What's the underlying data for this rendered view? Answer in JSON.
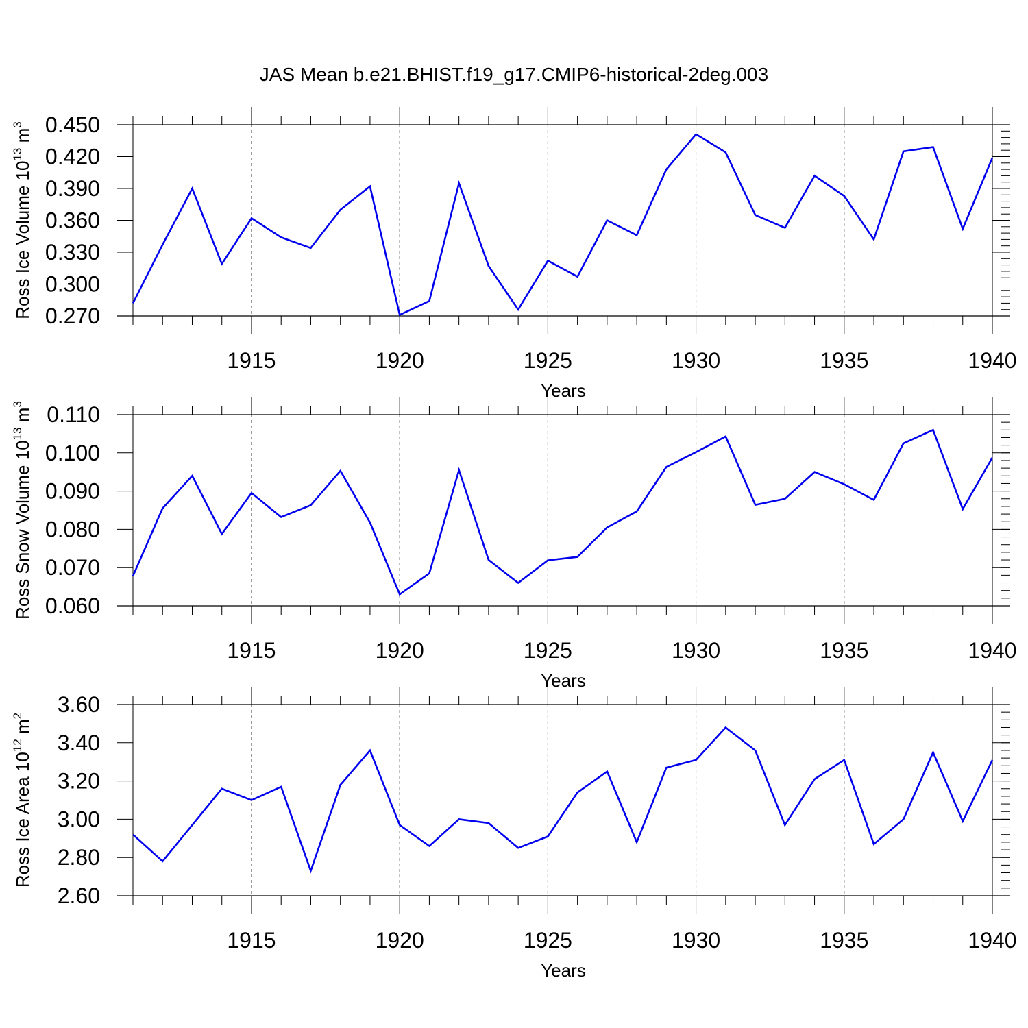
{
  "figure": {
    "title": "JAS Mean b.e21.BHIST.f19_g17.CMIP6-historical-2deg.003",
    "line_color": "#0000ee"
  },
  "chart_data": [
    {
      "type": "line",
      "ylabel": {
        "text": "Ross Ice Volume 10",
        "sup1": "13",
        "mid": " m",
        "sup2": "3"
      },
      "xlabel": "Years",
      "xlim": [
        1911,
        1940
      ],
      "ylim": [
        0.27,
        0.45
      ],
      "yticks": [
        0.27,
        0.3,
        0.33,
        0.36,
        0.39,
        0.42,
        0.45
      ],
      "ytick_labels": [
        "0.270",
        "0.300",
        "0.330",
        "0.360",
        "0.390",
        "0.420",
        "0.450"
      ],
      "yminor_step": 0.006,
      "xticks": [
        1915,
        1920,
        1925,
        1930,
        1935,
        1940
      ],
      "xtick_labels": [
        "1915",
        "1920",
        "1925",
        "1930",
        "1935",
        "1940"
      ],
      "grid": "vertical-dashed",
      "series": [
        {
          "x": [
            1911,
            1912,
            1913,
            1914,
            1915,
            1916,
            1917,
            1918,
            1919,
            1920,
            1921,
            1922,
            1923,
            1924,
            1925,
            1926,
            1927,
            1928,
            1929,
            1930,
            1931,
            1932,
            1933,
            1934,
            1935,
            1936,
            1937,
            1938,
            1939,
            1940
          ],
          "values": [
            0.282,
            0.337,
            0.39,
            0.319,
            0.362,
            0.344,
            0.334,
            0.37,
            0.392,
            0.271,
            0.284,
            0.395,
            0.317,
            0.276,
            0.322,
            0.307,
            0.36,
            0.346,
            0.408,
            0.441,
            0.424,
            0.365,
            0.353,
            0.402,
            0.383,
            0.342,
            0.425,
            0.429,
            0.352,
            0.419
          ]
        }
      ]
    },
    {
      "type": "line",
      "ylabel": {
        "text": "Ross Snow Volume 10",
        "sup1": "13",
        "mid": " m",
        "sup2": "3"
      },
      "xlabel": "Years",
      "xlim": [
        1911,
        1940
      ],
      "ylim": [
        0.06,
        0.11
      ],
      "yticks": [
        0.06,
        0.07,
        0.08,
        0.09,
        0.1,
        0.11
      ],
      "ytick_labels": [
        "0.060",
        "0.070",
        "0.080",
        "0.090",
        "0.100",
        "0.110"
      ],
      "yminor_step": 0.002,
      "xticks": [
        1915,
        1920,
        1925,
        1930,
        1935,
        1940
      ],
      "xtick_labels": [
        "1915",
        "1920",
        "1925",
        "1930",
        "1935",
        "1940"
      ],
      "grid": "vertical-dashed",
      "series": [
        {
          "x": [
            1911,
            1912,
            1913,
            1914,
            1915,
            1916,
            1917,
            1918,
            1919,
            1920,
            1921,
            1922,
            1923,
            1924,
            1925,
            1926,
            1927,
            1928,
            1929,
            1930,
            1931,
            1932,
            1933,
            1934,
            1935,
            1936,
            1937,
            1938,
            1939,
            1940
          ],
          "values": [
            0.0678,
            0.0855,
            0.094,
            0.0788,
            0.0895,
            0.0832,
            0.0863,
            0.0953,
            0.0818,
            0.063,
            0.0685,
            0.0955,
            0.072,
            0.066,
            0.0719,
            0.0728,
            0.0805,
            0.0847,
            0.0963,
            0.1002,
            0.1043,
            0.0864,
            0.088,
            0.095,
            0.0918,
            0.0877,
            0.1025,
            0.106,
            0.0853,
            0.0988
          ]
        }
      ]
    },
    {
      "type": "line",
      "ylabel": {
        "text": "Ross Ice Area 10",
        "sup1": "12",
        "mid": " m",
        "sup2": "2"
      },
      "xlabel": "Years",
      "xlim": [
        1911,
        1940
      ],
      "ylim": [
        2.6,
        3.6
      ],
      "yticks": [
        2.6,
        2.8,
        3.0,
        3.2,
        3.4,
        3.6
      ],
      "ytick_labels": [
        "2.60",
        "2.80",
        "3.00",
        "3.20",
        "3.40",
        "3.60"
      ],
      "yminor_step": 0.04,
      "xticks": [
        1915,
        1920,
        1925,
        1930,
        1935,
        1940
      ],
      "xtick_labels": [
        "1915",
        "1920",
        "1925",
        "1930",
        "1935",
        "1940"
      ],
      "grid": "vertical-dashed",
      "series": [
        {
          "x": [
            1911,
            1912,
            1913,
            1914,
            1915,
            1916,
            1917,
            1918,
            1919,
            1920,
            1921,
            1922,
            1923,
            1924,
            1925,
            1926,
            1927,
            1928,
            1929,
            1930,
            1931,
            1932,
            1933,
            1934,
            1935,
            1936,
            1937,
            1938,
            1939,
            1940
          ],
          "values": [
            2.92,
            2.78,
            2.97,
            3.16,
            3.1,
            3.17,
            2.73,
            3.18,
            3.36,
            2.97,
            2.86,
            3.0,
            2.98,
            2.85,
            2.91,
            3.14,
            3.25,
            2.88,
            3.27,
            3.31,
            3.48,
            3.36,
            2.97,
            3.21,
            3.31,
            2.87,
            3.0,
            3.35,
            2.99,
            3.31
          ]
        }
      ]
    }
  ]
}
